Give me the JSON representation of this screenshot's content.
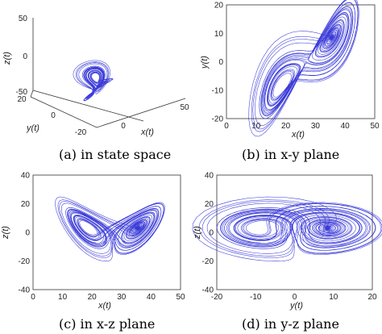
{
  "chart_data": [
    {
      "id": "a",
      "type": "line",
      "projection": "3d",
      "caption": "(a)  in state space",
      "xlabel": "x(t)",
      "ylabel": "y(t)",
      "zlabel": "z(t)",
      "xlim": [
        -20,
        50
      ],
      "ylim": [
        -20,
        20
      ],
      "zlim": [
        -50,
        50
      ],
      "xticks": [
        "-20",
        "0",
        "50"
      ],
      "yticks": [
        "20",
        "0"
      ],
      "zticks": [
        "50",
        "0",
        "-50"
      ],
      "color": "#3a3ad8",
      "series": [
        {
          "x": [],
          "y": [],
          "z": []
        }
      ]
    },
    {
      "id": "b",
      "type": "line",
      "caption": "(b) in x-y plane",
      "xlabel": "x(t)",
      "ylabel": "y(t)",
      "xlim": [
        0,
        50
      ],
      "ylim": [
        -20,
        20
      ],
      "xticks": [
        "0",
        "10",
        "20",
        "30",
        "40",
        "50"
      ],
      "yticks": [
        "20",
        "10",
        "0",
        "-10",
        "-20"
      ],
      "color": "#3a3ad8",
      "series": [
        {
          "x": [],
          "y": []
        }
      ]
    },
    {
      "id": "c",
      "type": "line",
      "caption": "(c)  in x-z plane",
      "xlabel": "x(t)",
      "ylabel": "z(t)",
      "xlim": [
        0,
        50
      ],
      "ylim": [
        -40,
        40
      ],
      "xticks": [
        "0",
        "10",
        "20",
        "30",
        "40",
        "50"
      ],
      "yticks": [
        "40",
        "20",
        "0",
        "-20",
        "-40"
      ],
      "color": "#3a3ad8",
      "series": [
        {
          "x": [],
          "z": []
        }
      ]
    },
    {
      "id": "d",
      "type": "line",
      "caption": "(d)  in y-z plane",
      "xlabel": "y(t)",
      "ylabel": "z(t)",
      "xlim": [
        -20,
        20
      ],
      "ylim": [
        -40,
        40
      ],
      "xticks": [
        "-20",
        "-10",
        "0",
        "10",
        "20"
      ],
      "yticks": [
        "40",
        "20",
        "0",
        "-20",
        "-40"
      ],
      "color": "#3a3ad8",
      "series": [
        {
          "y": [],
          "z": []
        }
      ]
    }
  ]
}
